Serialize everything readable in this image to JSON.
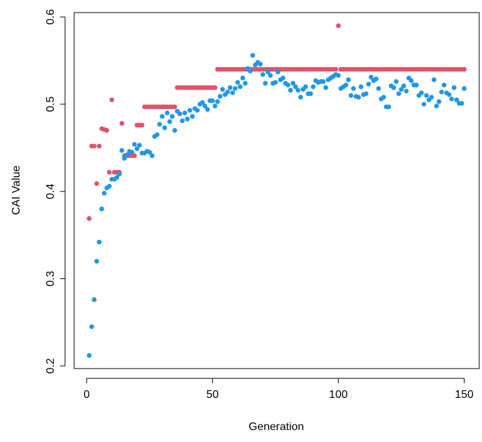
{
  "chart_data": {
    "type": "scatter",
    "x_label": "Generation",
    "y_label": "CAI Value",
    "xlim": [
      -4.96,
      155.96
    ],
    "ylim": [
      0.197,
      0.605
    ],
    "xticks": [
      0,
      50,
      100,
      150
    ],
    "yticks": [
      0.2,
      0.3,
      0.4,
      0.5,
      0.6
    ],
    "x": [
      1,
      2,
      3,
      4,
      5,
      6,
      7,
      8,
      9,
      10,
      11,
      12,
      13,
      14,
      15,
      16,
      17,
      18,
      19,
      20,
      21,
      22,
      23,
      24,
      25,
      26,
      27,
      28,
      29,
      30,
      31,
      32,
      33,
      34,
      35,
      36,
      37,
      38,
      39,
      40,
      41,
      42,
      43,
      44,
      45,
      46,
      47,
      48,
      49,
      50,
      51,
      52,
      53,
      54,
      55,
      56,
      57,
      58,
      59,
      60,
      61,
      62,
      63,
      64,
      65,
      66,
      67,
      68,
      69,
      70,
      71,
      72,
      73,
      74,
      75,
      76,
      77,
      78,
      79,
      80,
      81,
      82,
      83,
      84,
      85,
      86,
      87,
      88,
      89,
      90,
      91,
      92,
      93,
      94,
      95,
      96,
      97,
      98,
      99,
      100,
      101,
      102,
      103,
      104,
      105,
      106,
      107,
      108,
      109,
      110,
      111,
      112,
      113,
      114,
      115,
      116,
      117,
      118,
      119,
      120,
      121,
      122,
      123,
      124,
      125,
      126,
      127,
      128,
      129,
      130,
      131,
      132,
      133,
      134,
      135,
      136,
      137,
      138,
      139,
      140,
      141,
      142,
      143,
      144,
      145,
      146,
      147,
      148,
      149,
      150
    ],
    "series": [
      {
        "color": "#DF536B",
        "values": [
          0.369,
          0.452,
          0.452,
          0.409,
          0.452,
          0.472,
          0.471,
          0.47,
          0.422,
          0.505,
          0.422,
          0.422,
          0.422,
          0.478,
          0.441,
          0.441,
          0.441,
          0.441,
          0.441,
          0.476,
          0.476,
          0.476,
          0.497,
          0.497,
          0.497,
          0.497,
          0.497,
          0.497,
          0.497,
          0.497,
          0.497,
          0.497,
          0.497,
          0.497,
          0.497,
          0.519,
          0.519,
          0.519,
          0.519,
          0.519,
          0.519,
          0.519,
          0.519,
          0.519,
          0.519,
          0.519,
          0.519,
          0.519,
          0.519,
          0.519,
          0.519,
          0.54,
          0.54,
          0.54,
          0.54,
          0.54,
          0.54,
          0.54,
          0.54,
          0.54,
          0.54,
          0.54,
          0.54,
          0.54,
          0.54,
          0.54,
          0.54,
          0.54,
          0.54,
          0.54,
          0.54,
          0.54,
          0.54,
          0.54,
          0.54,
          0.54,
          0.54,
          0.54,
          0.54,
          0.54,
          0.54,
          0.54,
          0.54,
          0.54,
          0.54,
          0.54,
          0.54,
          0.54,
          0.54,
          0.54,
          0.54,
          0.54,
          0.54,
          0.54,
          0.54,
          0.54,
          0.54,
          0.54,
          0.54,
          0.59,
          0.54,
          0.54,
          0.54,
          0.54,
          0.54,
          0.54,
          0.54,
          0.54,
          0.54,
          0.54,
          0.54,
          0.54,
          0.54,
          0.54,
          0.54,
          0.54,
          0.54,
          0.54,
          0.54,
          0.54,
          0.54,
          0.54,
          0.54,
          0.54,
          0.54,
          0.54,
          0.54,
          0.54,
          0.54,
          0.54,
          0.54,
          0.54,
          0.54,
          0.54,
          0.54,
          0.54,
          0.54,
          0.54,
          0.54,
          0.54,
          0.54,
          0.54,
          0.54,
          0.54,
          0.54,
          0.54,
          0.54,
          0.54,
          0.54,
          0.54
        ]
      },
      {
        "color": "#2297E6",
        "values": [
          0.212,
          0.245,
          0.276,
          0.32,
          0.342,
          0.38,
          0.398,
          0.404,
          0.406,
          0.414,
          0.414,
          0.416,
          0.42,
          0.447,
          0.438,
          0.442,
          0.446,
          0.445,
          0.454,
          0.449,
          0.453,
          0.444,
          0.444,
          0.446,
          0.445,
          0.441,
          0.463,
          0.465,
          0.477,
          0.486,
          0.473,
          0.49,
          0.48,
          0.486,
          0.47,
          0.492,
          0.489,
          0.481,
          0.49,
          0.483,
          0.493,
          0.486,
          0.495,
          0.493,
          0.5,
          0.502,
          0.498,
          0.494,
          0.504,
          0.504,
          0.498,
          0.503,
          0.509,
          0.517,
          0.511,
          0.514,
          0.519,
          0.513,
          0.518,
          0.525,
          0.52,
          0.53,
          0.524,
          0.541,
          0.538,
          0.556,
          0.545,
          0.548,
          0.546,
          0.534,
          0.524,
          0.537,
          0.533,
          0.524,
          0.525,
          0.537,
          0.528,
          0.53,
          0.524,
          0.522,
          0.516,
          0.524,
          0.52,
          0.516,
          0.508,
          0.517,
          0.52,
          0.512,
          0.512,
          0.52,
          0.527,
          0.525,
          0.526,
          0.526,
          0.519,
          0.528,
          0.53,
          0.532,
          0.534,
          0.533,
          0.518,
          0.52,
          0.522,
          0.528,
          0.51,
          0.518,
          0.509,
          0.508,
          0.52,
          0.511,
          0.512,
          0.523,
          0.531,
          0.527,
          0.529,
          0.518,
          0.506,
          0.508,
          0.497,
          0.497,
          0.521,
          0.519,
          0.526,
          0.512,
          0.517,
          0.521,
          0.515,
          0.53,
          0.527,
          0.522,
          0.522,
          0.51,
          0.513,
          0.5,
          0.51,
          0.505,
          0.508,
          0.528,
          0.498,
          0.503,
          0.514,
          0.522,
          0.513,
          0.511,
          0.506,
          0.519,
          0.505,
          0.501,
          0.501,
          0.518
        ]
      }
    ]
  }
}
